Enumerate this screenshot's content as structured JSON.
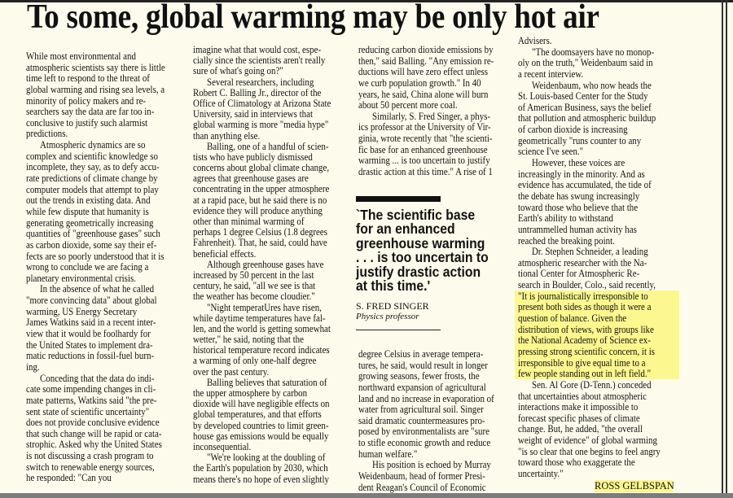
{
  "headline": "To some, global warming may be only hot air",
  "highlight_color": "#fcf78e",
  "columns": [
    {
      "paragraphs": [
        {
          "indent": false,
          "lines": [
            "While most environmental and",
            "atmospheric scientists say there is little",
            "time left to respond to the threat of",
            "global warming and rising sea levels, a",
            "minority of policy makers and re-",
            "searchers say the data are far too in-",
            "conclusive to justify such alarmist",
            "predictions."
          ]
        },
        {
          "indent": true,
          "lines": [
            "Atmospheric dynamics are so",
            "complex and scientific knowledge so",
            "incomplete, they say, as to defy accu-",
            "rate predictions of climate change by",
            "computer models that attempt to play",
            "out the trends in existing data. And",
            "while few dispute that humanity is",
            "generating geometrically increasing",
            "quantities of \"greenhouse gases\" such",
            "as carbon dioxide, some say their ef-",
            "fects are so poorly understood that it is",
            "wrong to conclude we are facing a",
            "planetary environmental crisis."
          ]
        },
        {
          "indent": true,
          "lines": [
            "In the absence of what he called",
            "\"more convincing data\" about global",
            "warming, US Energy Secretary",
            "James Watkins said in a recent inter-",
            "view that it would be foolhardy for",
            "the United States to implement dra-",
            "matic reductions in fossil-fuel burn-",
            "ing."
          ]
        },
        {
          "indent": true,
          "lines": [
            "Conceding that the data do indi-",
            "cate some impending changes in cli-",
            "mate patterns, Watkins said \"the pre-",
            "sent state of scientific uncertainty\"",
            "does not provide conclusive evidence",
            "that such change will be rapid or cata-",
            "strophic. Asked why the United States",
            "is not discussing a crash program to",
            "switch to renewable energy sources,",
            "he responded: \"Can you"
          ]
        }
      ]
    },
    {
      "paragraphs": [
        {
          "indent": false,
          "lines": [
            "imagine what that would cost, espe-",
            "cially since the scientists aren't really",
            "sure of what's going on?\""
          ]
        },
        {
          "indent": true,
          "lines": [
            "Several researchers, including",
            "Robert C. Balling Jr., director of the",
            "Office of Climatology at Arizona State",
            "University, said in interviews that",
            "global warming is more \"media hype\"",
            "than anything else."
          ]
        },
        {
          "indent": true,
          "lines": [
            "Balling, one of a handful of scien-",
            "tists who have publicly dismissed",
            "concerns about global climate change,",
            "agrees that greenhouse gases are",
            "concentrating in the upper atmosphere",
            "at a rapid pace, but he said there is no",
            "evidence they will produce anything",
            "other than minimal warming of",
            "perhaps 1 degree Celsius (1.8 degrees",
            "Fahrenheit). That, he said, could have",
            "beneficial effects."
          ]
        },
        {
          "indent": true,
          "lines": [
            "Although greenhouse gases have",
            "increased by 50 percent in the last",
            "century, he said, \"all we see is that",
            "the weather has become cloudier.\""
          ]
        },
        {
          "indent": true,
          "lines": [
            "\"Night temperatUres have risen,",
            "while daytime temperatures have fal-",
            "len, and the world is getting somewhat",
            "wetter,\" he said, noting that the",
            "historical temperature record indicates",
            "a warming of only one-half degree",
            "over the past century."
          ]
        },
        {
          "indent": true,
          "lines": [
            "Balling believes that saturation of",
            "the upper atmosphere by carbon",
            "dioxide will have negligible effects on",
            "global temperatures, and that efforts",
            "by developed countries to limit green-",
            "house gas emissions would be equally",
            "inconsequential."
          ]
        },
        {
          "indent": true,
          "lines": [
            "\"We're looking at the doubling of",
            "the Earth's population by 2030, which",
            "means there's no hope of even slightly"
          ]
        }
      ]
    },
    {
      "paragraphs": [
        {
          "indent": false,
          "lines": [
            "reducing carbon dioxide emissions by",
            "then,\" said Balling. \"Any emission re-",
            "ductions will have zero effect unless",
            "we curb population growth.\" In 40",
            "years, he said, China alone will burn",
            "about 50 percent more coal."
          ]
        },
        {
          "indent": true,
          "lines": [
            "Similarly, S. Fred Singer, a phys-",
            "ics professor at the University of Vir-",
            "ginia, wrote recently that \"the scienti-",
            "fic base for an enhanced greenhouse",
            "warming ... is too uncertain to justify",
            "drastic action at this time.\" A rise of 1"
          ]
        }
      ]
    },
    {
      "paragraphs": [
        {
          "indent": false,
          "lines": [
            "degree Celsius in average tempera-",
            "tures, he said, would result in longer",
            "growing seasons, fewer frosts, the",
            "northward expansion of agricultural",
            "land and no increase in evaporation of",
            "water from agricultural soil. Singer",
            "said dramatic countermeasures pro-",
            "posed by environmentalists are \"sure",
            "to stifle economic growth and reduce",
            "human welfare.\""
          ]
        },
        {
          "indent": true,
          "lines": [
            "His position is echoed by Murray",
            "Weidenbaum, head of former Presi-",
            "dent Reagan's Council of Economic"
          ]
        }
      ]
    },
    {
      "paragraphs": [
        {
          "indent": false,
          "lines": [
            "Advisers."
          ]
        },
        {
          "indent": true,
          "lines": [
            "\"The doomsayers have no monop-",
            "oly on the truth,\" Weidenbaum said in",
            "a recent interview."
          ]
        },
        {
          "indent": true,
          "lines": [
            "Weidenbaum, who now heads the",
            "St. Louis-based Center for the Study",
            "of American Business, says the belief",
            "that pollution and atmospheric buildup",
            "of carbon dioxide is increasing",
            "geometrically \"runs counter to any",
            "science I've seen.\""
          ]
        },
        {
          "indent": true,
          "lines": [
            "However, these voices are",
            "increasingly in the minority. And as",
            "evidence has accumulated, the tide of",
            "the debate has swung increasingly",
            "toward those who believe that the",
            "Earth's ability to withstand",
            "untrammelled human activity has",
            "reached the breaking point."
          ]
        },
        {
          "indent": true,
          "lines": [
            "Dr. Stephen Schneider, a leading",
            "atmospheric researcher with the Na-",
            "tional Center for Atmospheric Re-",
            "search in Boulder, Colo., said recently,"
          ],
          "highlighted_lines": [
            "\"It is journalistically irresponsible to",
            "present both sides as though it were a",
            "question of balance. Given the",
            "distribution of views, with groups like",
            "the National Academy of Science ex-",
            "pressing strong scientific concern, it is",
            "irresponsible to give equal time to a",
            "few people standing out in left field.\""
          ]
        },
        {
          "indent": true,
          "lines": [
            "Sen. Al Gore (D-Tenn.) conceded",
            "that uncertainties about atmospheric",
            "interactions make it impossible to",
            "forecast specific phases of climate",
            "change. But, he added, \"the overall",
            "weight of evidence\" of global warming",
            "\"is so clear that one begins to feel angry",
            "toward those who exaggerate the",
            "uncertainty.\""
          ]
        }
      ]
    }
  ],
  "pull_quote": {
    "lines": [
      "`The scientific base",
      "for an enhanced",
      "greenhouse warming",
      ". . . is too uncertain to",
      "justify drastic action",
      "at this time.'"
    ],
    "name": "S. FRED SINGER",
    "title": "Physics professor"
  },
  "byline": "ROSS GELBSPAN"
}
